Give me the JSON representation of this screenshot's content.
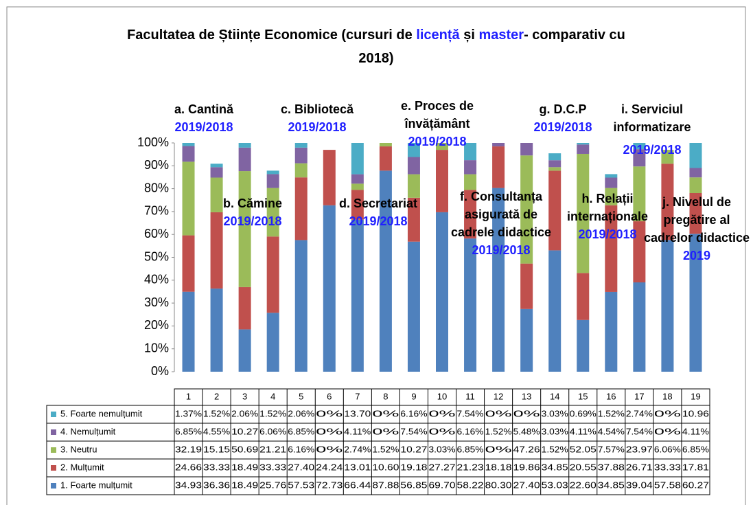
{
  "chart_data": {
    "type": "stacked_bar",
    "title": [
      [
        "Facultatea de Științe Economice (cursuri de ",
        "licență",
        " și ",
        "master",
        "- comparativ cu"
      ],
      [
        "2018)"
      ]
    ],
    "categories": [
      "1",
      "2",
      "3",
      "4",
      "5",
      "6",
      "7",
      "8",
      "9",
      "10",
      "11",
      "12",
      "13",
      "14",
      "15",
      "16",
      "17",
      "18",
      "19"
    ],
    "ylim": [
      0,
      100
    ],
    "yticks": [
      {
        "value": 0,
        "label": "0%"
      },
      {
        "value": 10,
        "label": "10%"
      },
      {
        "value": 20,
        "label": "20%"
      },
      {
        "value": 30,
        "label": "30%"
      },
      {
        "value": 40,
        "label": "40%"
      },
      {
        "value": 50,
        "label": "50%"
      },
      {
        "value": 60,
        "label": "60%"
      },
      {
        "value": 70,
        "label": "70%"
      },
      {
        "value": 80,
        "label": "80%"
      },
      {
        "value": 90,
        "label": "90%"
      },
      {
        "value": 100,
        "label": "100%"
      }
    ],
    "series": [
      {
        "name": "1. Foarte mulțumit",
        "color": "#4f81bd",
        "values": [
          34.93,
          36.36,
          18.49,
          25.76,
          57.53,
          72.73,
          66.44,
          87.88,
          56.85,
          69.7,
          58.22,
          80.3,
          27.4,
          53.03,
          22.6,
          34.85,
          39.04,
          57.58,
          60.27
        ],
        "value_labels": [
          "34.93",
          "36.36",
          "18.49",
          "25.76",
          "57.53",
          "72.73",
          "66.44",
          "87.88",
          "56.85",
          "69.70",
          "58.22",
          "80.30",
          "27.40",
          "53.03",
          "22.60",
          "34.85",
          "39.04",
          "57.58",
          "60.27"
        ]
      },
      {
        "name": "2. Mulțumit",
        "color": "#c0504d",
        "values": [
          24.66,
          33.33,
          18.49,
          33.33,
          27.4,
          24.24,
          13.01,
          10.6,
          19.18,
          27.27,
          21.23,
          18.18,
          19.86,
          34.85,
          20.55,
          37.88,
          26.71,
          33.33,
          17.81
        ],
        "value_labels": [
          "24.66",
          "33.33",
          "18.49",
          "33.33",
          "27.40",
          "24.24",
          "13.01",
          "10.60",
          "19.18",
          "27.27",
          "21.23",
          "18.18",
          "19.86",
          "34.85",
          "20.55",
          "37.88",
          "26.71",
          "33.33",
          "17.81"
        ]
      },
      {
        "name": "3. Neutru",
        "color": "#9bbb59",
        "values": [
          32.19,
          15.15,
          50.69,
          21.21,
          6.16,
          0,
          2.74,
          1.52,
          10.27,
          3.03,
          6.85,
          0,
          47.26,
          1.52,
          52.05,
          7.57,
          23.97,
          6.06,
          6.85
        ],
        "value_labels": [
          "32.19",
          "15.15",
          "50.69",
          "21.21",
          "6.16%",
          "0%",
          "2.74%",
          "1.52%",
          "10.27",
          "3.03%",
          "6.85%",
          "0%",
          "47.26",
          "1.52%",
          "52.05",
          "7.57%",
          "23.97",
          "6.06%",
          "6.85%"
        ]
      },
      {
        "name": "4. Nemulțumit",
        "color": "#8064a2",
        "values": [
          6.85,
          4.55,
          10.27,
          6.06,
          6.85,
          0,
          4.11,
          0,
          7.54,
          0,
          6.16,
          1.52,
          5.48,
          3.03,
          4.11,
          4.54,
          7.54,
          0,
          4.11
        ],
        "value_labels": [
          "6.85%",
          "4.55%",
          "10.27",
          "6.06%",
          "6.85%",
          "0%",
          "4.11%",
          "0%",
          "7.54%",
          "0%",
          "6.16%",
          "1.52%",
          "5.48%",
          "3.03%",
          "4.11%",
          "4.54%",
          "7.54%",
          "0%",
          "4.11%"
        ]
      },
      {
        "name": "5. Foarte nemulțumit",
        "color": "#4bacc6",
        "values": [
          1.37,
          1.52,
          2.06,
          1.52,
          2.06,
          0,
          13.7,
          0,
          6.16,
          0,
          7.54,
          0,
          0,
          3.03,
          0.69,
          1.52,
          2.74,
          0,
          10.96
        ],
        "value_labels": [
          "1.37%",
          "1.52%",
          "2.06%",
          "1.52%",
          "2.06%",
          "0%",
          "13.70",
          "0%",
          "6.16%",
          "0%",
          "7.54%",
          "0%",
          "0%",
          "3.03%",
          "0.69%",
          "1.52%",
          "2.74%",
          "0%",
          "10.96"
        ]
      }
    ],
    "annotations": [
      {
        "lines": [
          "a. Cantină"
        ],
        "period": "2019/2018"
      },
      {
        "lines": [
          "b. Cămine"
        ],
        "period": "2019/2018"
      },
      {
        "lines": [
          "c. Bibliotecă"
        ],
        "period": "2019/2018"
      },
      {
        "lines": [
          "d. Secretariat"
        ],
        "period": "2019/2018"
      },
      {
        "lines": [
          "e. Proces de",
          "învățământ"
        ],
        "period": "2019/2018"
      },
      {
        "lines": [
          "f. Consultanța",
          "asigurată de",
          "cadrele didactice"
        ],
        "period": "2019/2018"
      },
      {
        "lines": [
          "g. D.C.P"
        ],
        "period": "2019/2018"
      },
      {
        "lines": [
          "h. Relații",
          "internaționale"
        ],
        "period": "2019/2018"
      },
      {
        "lines": [
          "i. Serviciul",
          "informatizare"
        ],
        "period": "2019/2018"
      },
      {
        "lines": [
          "j. Nivelul de",
          "pregătire al",
          "cadrelor didactice"
        ],
        "period": "2019"
      }
    ]
  }
}
